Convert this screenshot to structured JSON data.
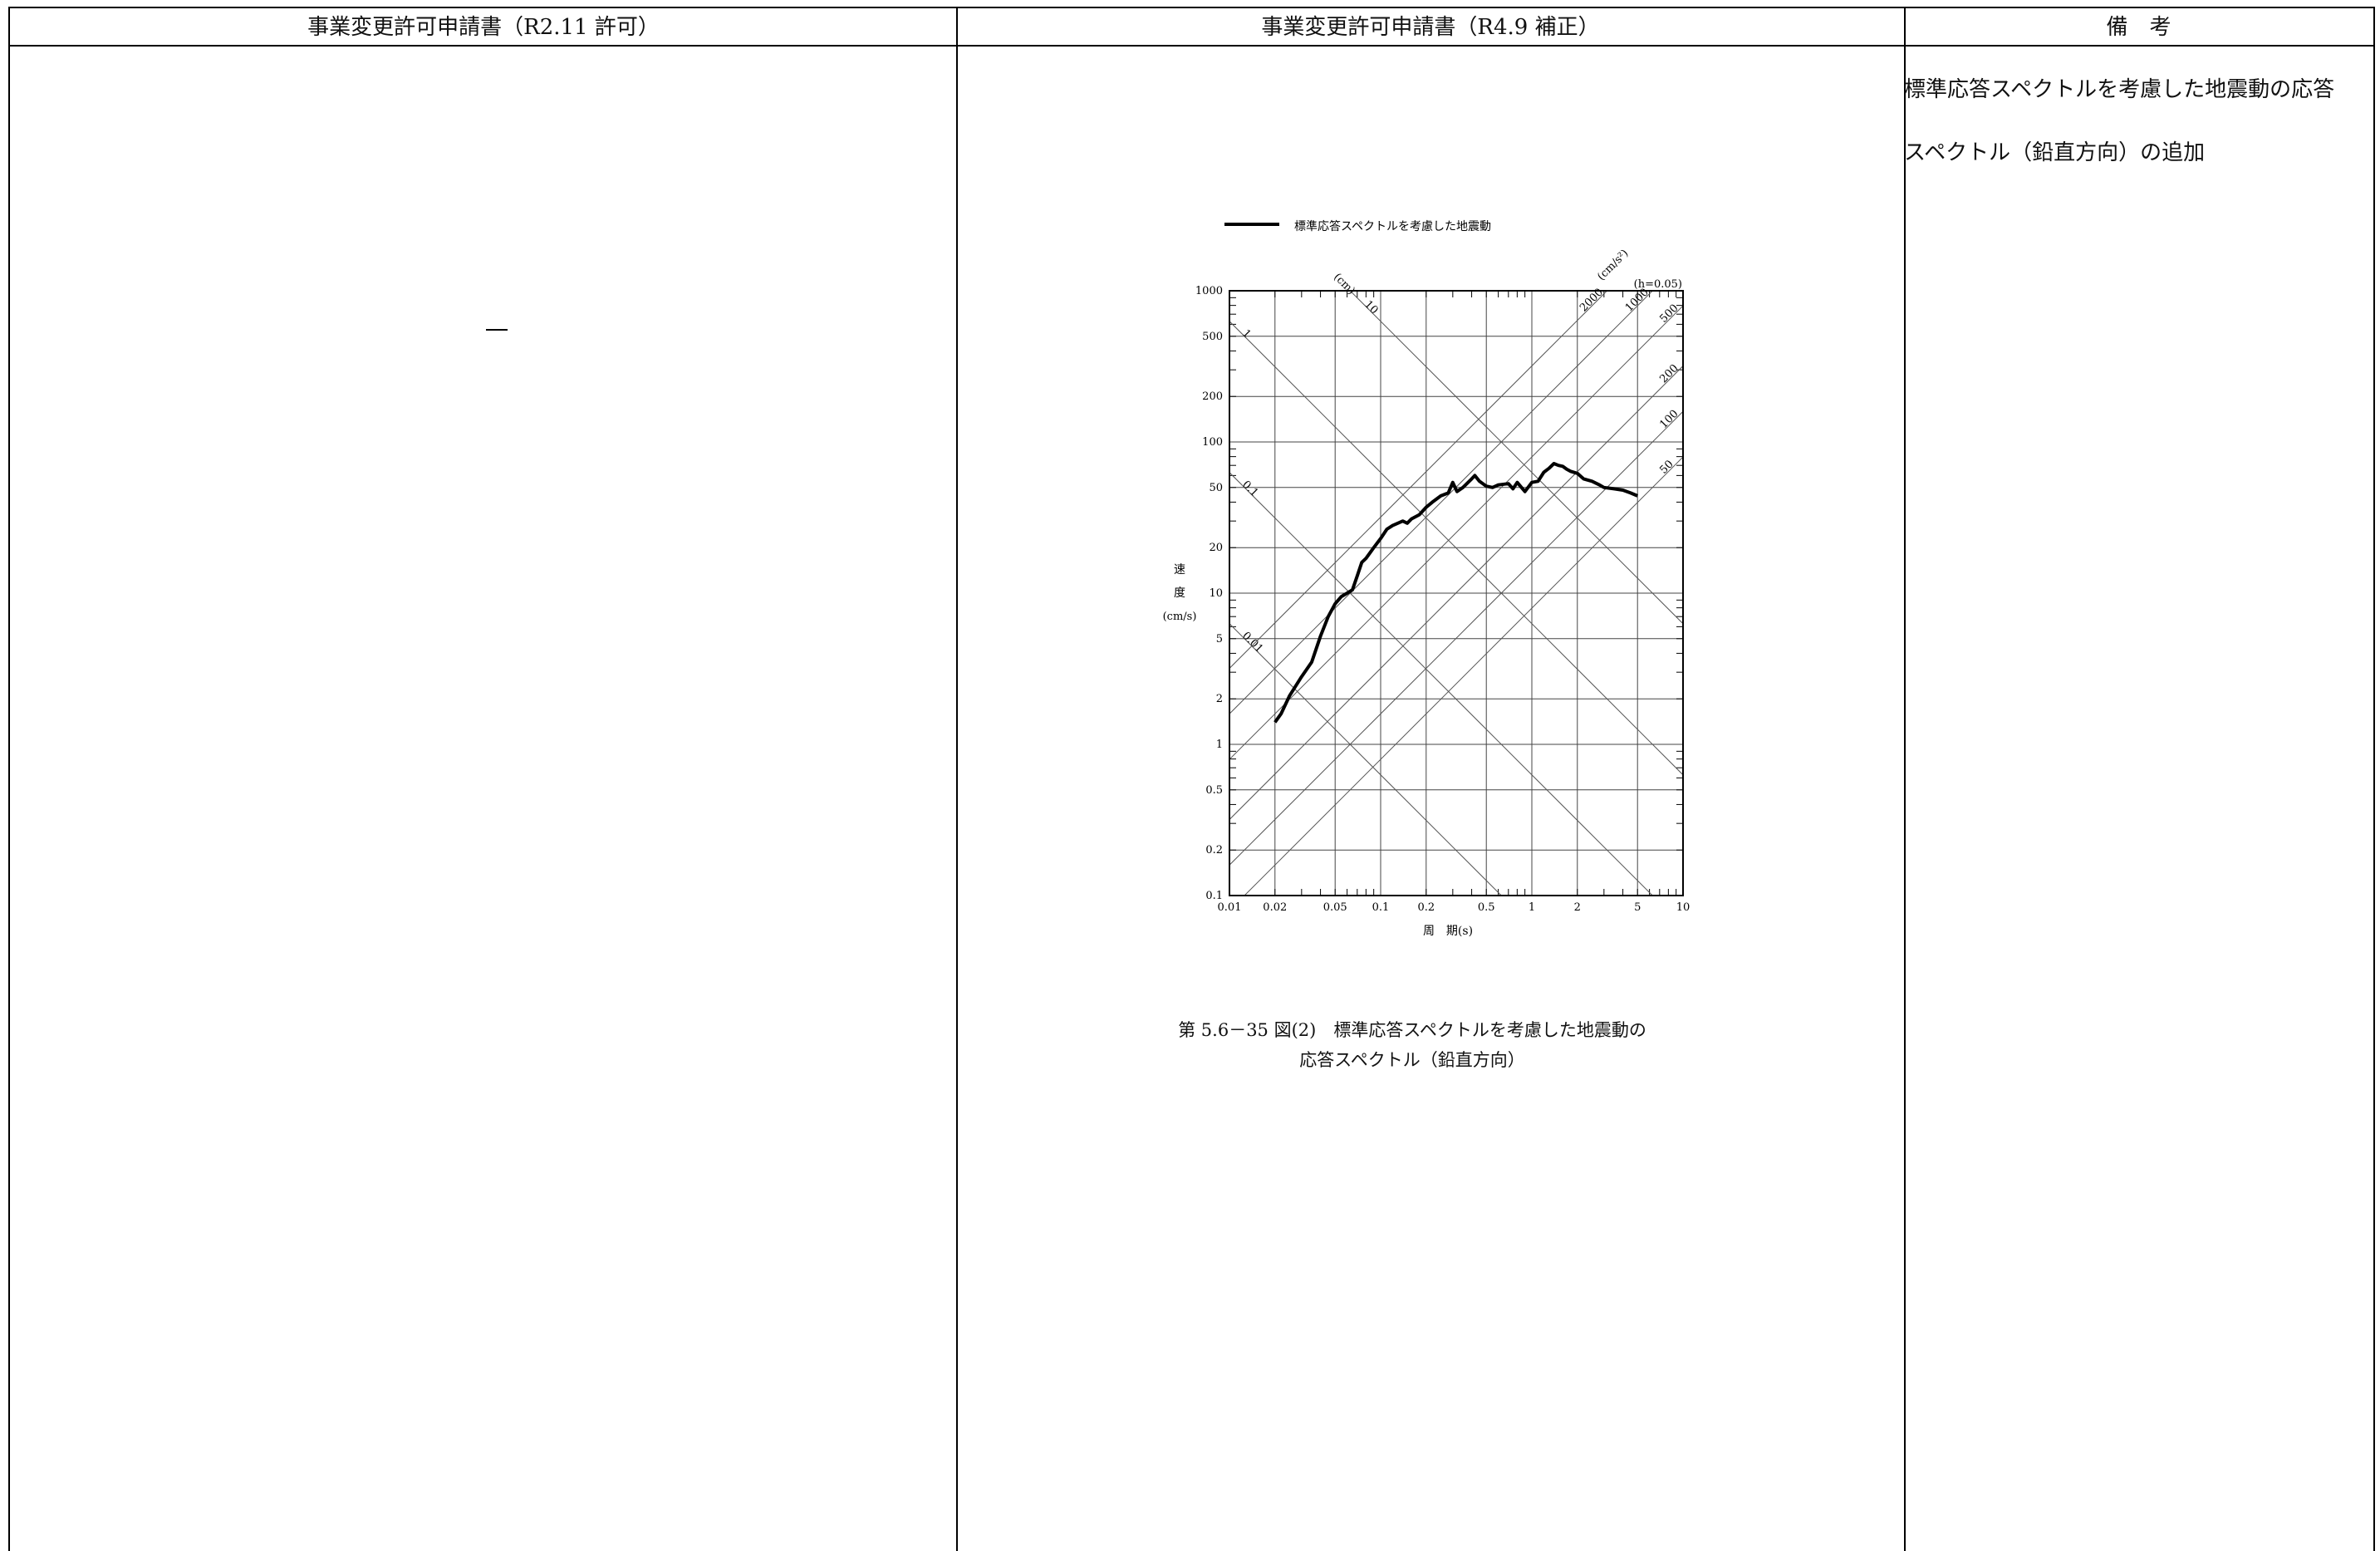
{
  "header": {
    "col1": "事業変更許可申請書（R2.11 許可）",
    "col2": "事業変更許可申請書（R4.9 補正）",
    "col3": "備　考"
  },
  "col1_content": "—",
  "remarks": {
    "line1": "標準応答スペクトルを考慮した地震動の応答",
    "line2": "スペクトル（鉛直方向）の追加"
  },
  "figure": {
    "caption_line1": "第 5.6－35 図(2)　標準応答スペクトルを考慮した地震動の",
    "caption_line2": "応答スペクトル（鉛直方向）"
  },
  "chart_data": {
    "type": "line",
    "legend": [
      "標準応答スペクトルを考慮した地震動"
    ],
    "legend_position": "top",
    "damping_label": "(h=0.05)",
    "xlabel": "周　期(s)",
    "ylabel": [
      "速",
      "度",
      "(cm/s)"
    ],
    "x_scale": "log",
    "y_scale": "log",
    "xlim": [
      0.01,
      10
    ],
    "ylim": [
      0.1,
      1000
    ],
    "x_ticks": [
      0.01,
      0.02,
      0.05,
      0.1,
      0.2,
      0.5,
      1,
      2,
      5,
      10
    ],
    "x_tick_labels": [
      "0.01",
      "0.02",
      "0.05",
      "0.1",
      "0.2",
      "0.5",
      "1",
      "2",
      "5",
      "10"
    ],
    "y_ticks": [
      0.1,
      0.2,
      0.5,
      1,
      2,
      5,
      10,
      20,
      50,
      100,
      200,
      500,
      1000
    ],
    "y_tick_labels": [
      "0.1",
      "0.2",
      "0.5",
      "1",
      "2",
      "5",
      "10",
      "20",
      "50",
      "100",
      "200",
      "500",
      "1000"
    ],
    "grid": true,
    "displacement_unit": "(cm)",
    "displacement_lines": [
      10,
      1,
      0.1,
      0.01
    ],
    "displacement_labels": [
      "10",
      "1",
      "0.1",
      "0.01"
    ],
    "acceleration_unit": "(cm/s²)",
    "acceleration_lines": [
      2000,
      1000,
      500,
      200,
      100,
      50
    ],
    "acceleration_labels": [
      "2000",
      "1000",
      "500",
      "200",
      "100",
      "50"
    ],
    "series": [
      {
        "name": "標準応答スペクトルを考慮した地震動",
        "x": [
          0.02,
          0.022,
          0.025,
          0.03,
          0.035,
          0.04,
          0.045,
          0.05,
          0.055,
          0.06,
          0.065,
          0.07,
          0.075,
          0.08,
          0.09,
          0.1,
          0.11,
          0.12,
          0.13,
          0.14,
          0.15,
          0.16,
          0.18,
          0.2,
          0.22,
          0.25,
          0.28,
          0.3,
          0.32,
          0.35,
          0.4,
          0.42,
          0.45,
          0.5,
          0.55,
          0.6,
          0.7,
          0.75,
          0.8,
          0.9,
          1.0,
          1.1,
          1.2,
          1.3,
          1.4,
          1.5,
          1.6,
          1.7,
          1.8,
          2.0,
          2.2,
          2.5,
          2.8,
          3.0,
          3.5,
          4.0,
          4.5,
          5.0
        ],
        "y": [
          1.4,
          1.6,
          2.1,
          2.8,
          3.5,
          5.2,
          7.0,
          8.5,
          9.5,
          10.0,
          10.5,
          13.0,
          16.0,
          17.0,
          20.0,
          23.0,
          26.5,
          28.0,
          29.0,
          30.0,
          29.0,
          31.0,
          33.0,
          37.0,
          40.0,
          44.0,
          46.0,
          54.0,
          47.0,
          50.0,
          57.0,
          60.0,
          55.0,
          51.0,
          50.0,
          52.0,
          53.0,
          49.0,
          54.0,
          47.0,
          54.0,
          55.0,
          63.0,
          67.0,
          72.0,
          70.0,
          69.0,
          66.0,
          64.0,
          62.0,
          57.0,
          55.0,
          52.0,
          50.0,
          49.0,
          48.0,
          46.0,
          44.0
        ]
      }
    ]
  }
}
